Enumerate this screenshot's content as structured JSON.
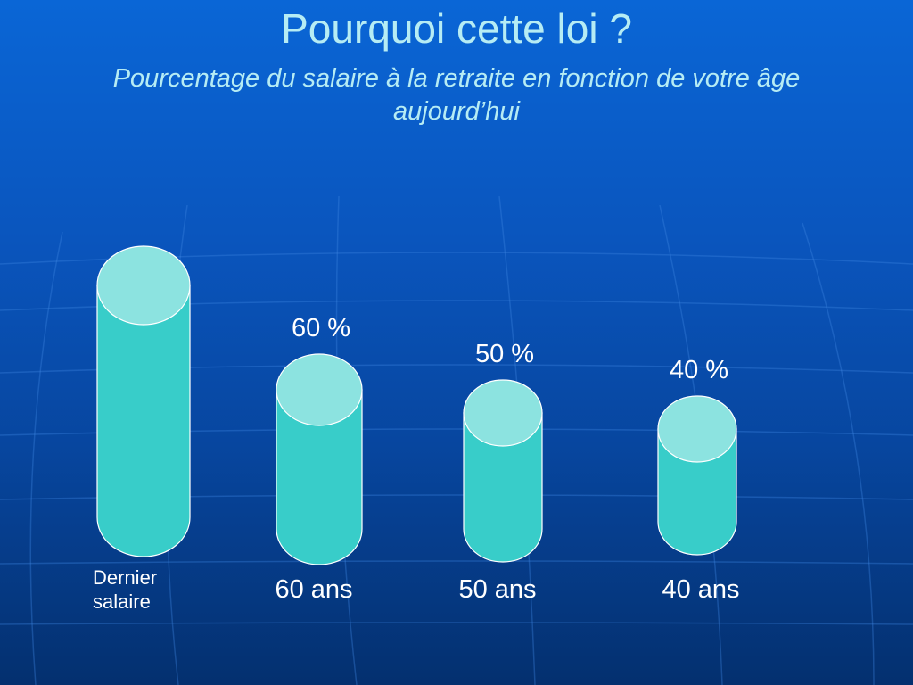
{
  "slide": {
    "title": "Pourquoi cette loi ?",
    "subtitle": "Pourcentage du salaire à la retraite en fonction de votre âge aujourd’hui"
  },
  "colors": {
    "cylinder_body": "#38cdc9",
    "cylinder_top": "#8ce3e0",
    "cylinder_stroke": "#ffffff",
    "text": "#ffffff",
    "title": "#b6ecf4"
  },
  "chart_data": {
    "type": "bar",
    "bar_shape": "cylinder",
    "categories": [
      "Dernier salaire",
      "60 ans",
      "50 ans",
      "40 ans"
    ],
    "values": [
      100,
      60,
      50,
      40
    ],
    "value_labels": [
      "",
      "60 %",
      "50 %",
      "40 %"
    ],
    "unit": "%",
    "ylim": [
      0,
      100
    ],
    "grid": false,
    "legend": "none"
  }
}
